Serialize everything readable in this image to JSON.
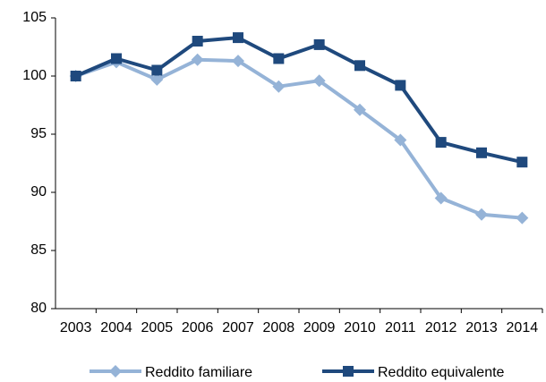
{
  "chart_data": {
    "type": "line",
    "categories": [
      "2003",
      "2004",
      "2005",
      "2006",
      "2007",
      "2008",
      "2009",
      "2010",
      "2011",
      "2012",
      "2013",
      "2014"
    ],
    "series": [
      {
        "name": "Reddito familiare",
        "color": "#95b3d7",
        "marker": "diamond",
        "values": [
          100,
          101.2,
          99.7,
          101.4,
          101.3,
          99.1,
          99.6,
          97.1,
          94.5,
          89.5,
          88.1,
          87.8
        ]
      },
      {
        "name": "Reddito equivalente",
        "color": "#1f497d",
        "marker": "square",
        "values": [
          100,
          101.5,
          100.5,
          103,
          103.3,
          101.5,
          102.7,
          100.9,
          99.2,
          94.3,
          93.4,
          92.6
        ]
      }
    ],
    "ylim": [
      80,
      105
    ],
    "yticks": [
      80,
      85,
      90,
      95,
      100,
      105
    ],
    "grid": false,
    "legend": "bottom"
  }
}
